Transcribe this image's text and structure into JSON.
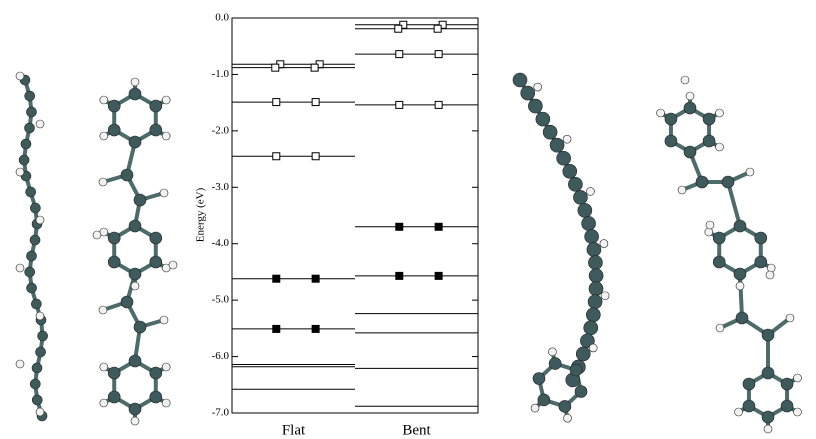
{
  "chart_data": {
    "type": "level",
    "y_label": "Energy (eV)",
    "ylim": [
      -7,
      0
    ],
    "yticks": [
      {
        "value": 0,
        "label": "0.0"
      },
      {
        "value": -1,
        "label": "-1.0"
      },
      {
        "value": -2,
        "label": "-2.0"
      },
      {
        "value": -3,
        "label": "-3.0"
      },
      {
        "value": -4,
        "label": "-4.0"
      },
      {
        "value": -5,
        "label": "-5.0"
      },
      {
        "value": -6,
        "label": "-6.0"
      },
      {
        "value": -7,
        "label": "-7.0"
      }
    ],
    "series": [
      {
        "name": "Flat",
        "color": "#000000",
        "values": [
          -0.82,
          -0.88,
          -1.49,
          -2.45,
          -4.62,
          -5.51,
          -6.14,
          -6.18,
          -6.58
        ],
        "markers": [
          "open",
          "open",
          "open",
          "open",
          "filled",
          "filled",
          null,
          null,
          null
        ]
      },
      {
        "name": "Bent",
        "color": "#000000",
        "values": [
          -0.12,
          -0.19,
          -0.64,
          -1.54,
          -3.7,
          -4.57,
          -5.24,
          -5.58,
          -6.21,
          -6.88
        ],
        "markers": [
          "open",
          "open",
          "open",
          "open",
          "filled",
          "filled",
          null,
          null,
          null,
          null
        ]
      }
    ]
  }
}
